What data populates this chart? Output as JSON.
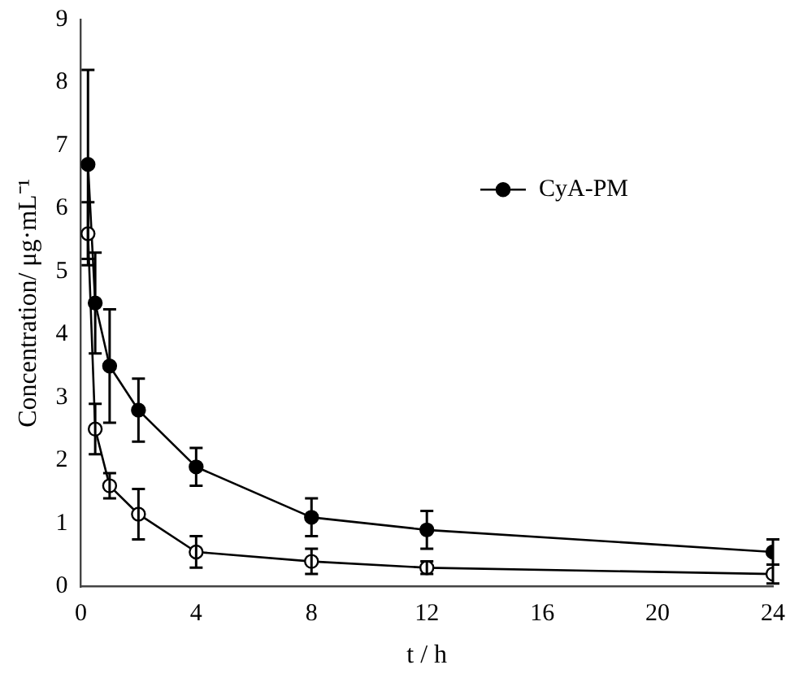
{
  "chart_data": {
    "type": "line",
    "xlabel": "t / h",
    "ylabel": "Concentration/ μg·mL⁻¹",
    "x": [
      0.25,
      0.5,
      1,
      2,
      4,
      8,
      12,
      24
    ],
    "xlim": [
      0,
      24
    ],
    "xticks": [
      0,
      4,
      8,
      12,
      16,
      20,
      24
    ],
    "ylim": [
      0,
      9
    ],
    "yticks": [
      0,
      1,
      2,
      3,
      4,
      5,
      6,
      7,
      8,
      9
    ],
    "grid": false,
    "legend": "top right",
    "marker": "circle",
    "line_style": "solid",
    "series": [
      {
        "color": "#000000",
        "values": [
          5.6,
          2.5,
          1.6,
          1.15,
          0.55,
          0.4,
          0.3,
          0.2
        ],
        "errors": [
          0.5,
          0.4,
          0.2,
          0.4,
          0.25,
          0.2,
          0.1,
          0.15
        ]
      },
      {
        "name": "CyA-PM",
        "color": "#000000",
        "values": [
          6.7,
          4.5,
          3.5,
          2.8,
          1.9,
          1.1,
          0.9,
          0.55
        ],
        "errors": [
          1.5,
          0.8,
          0.9,
          0.5,
          0.3,
          0.3,
          0.3,
          0.2
        ]
      }
    ]
  }
}
